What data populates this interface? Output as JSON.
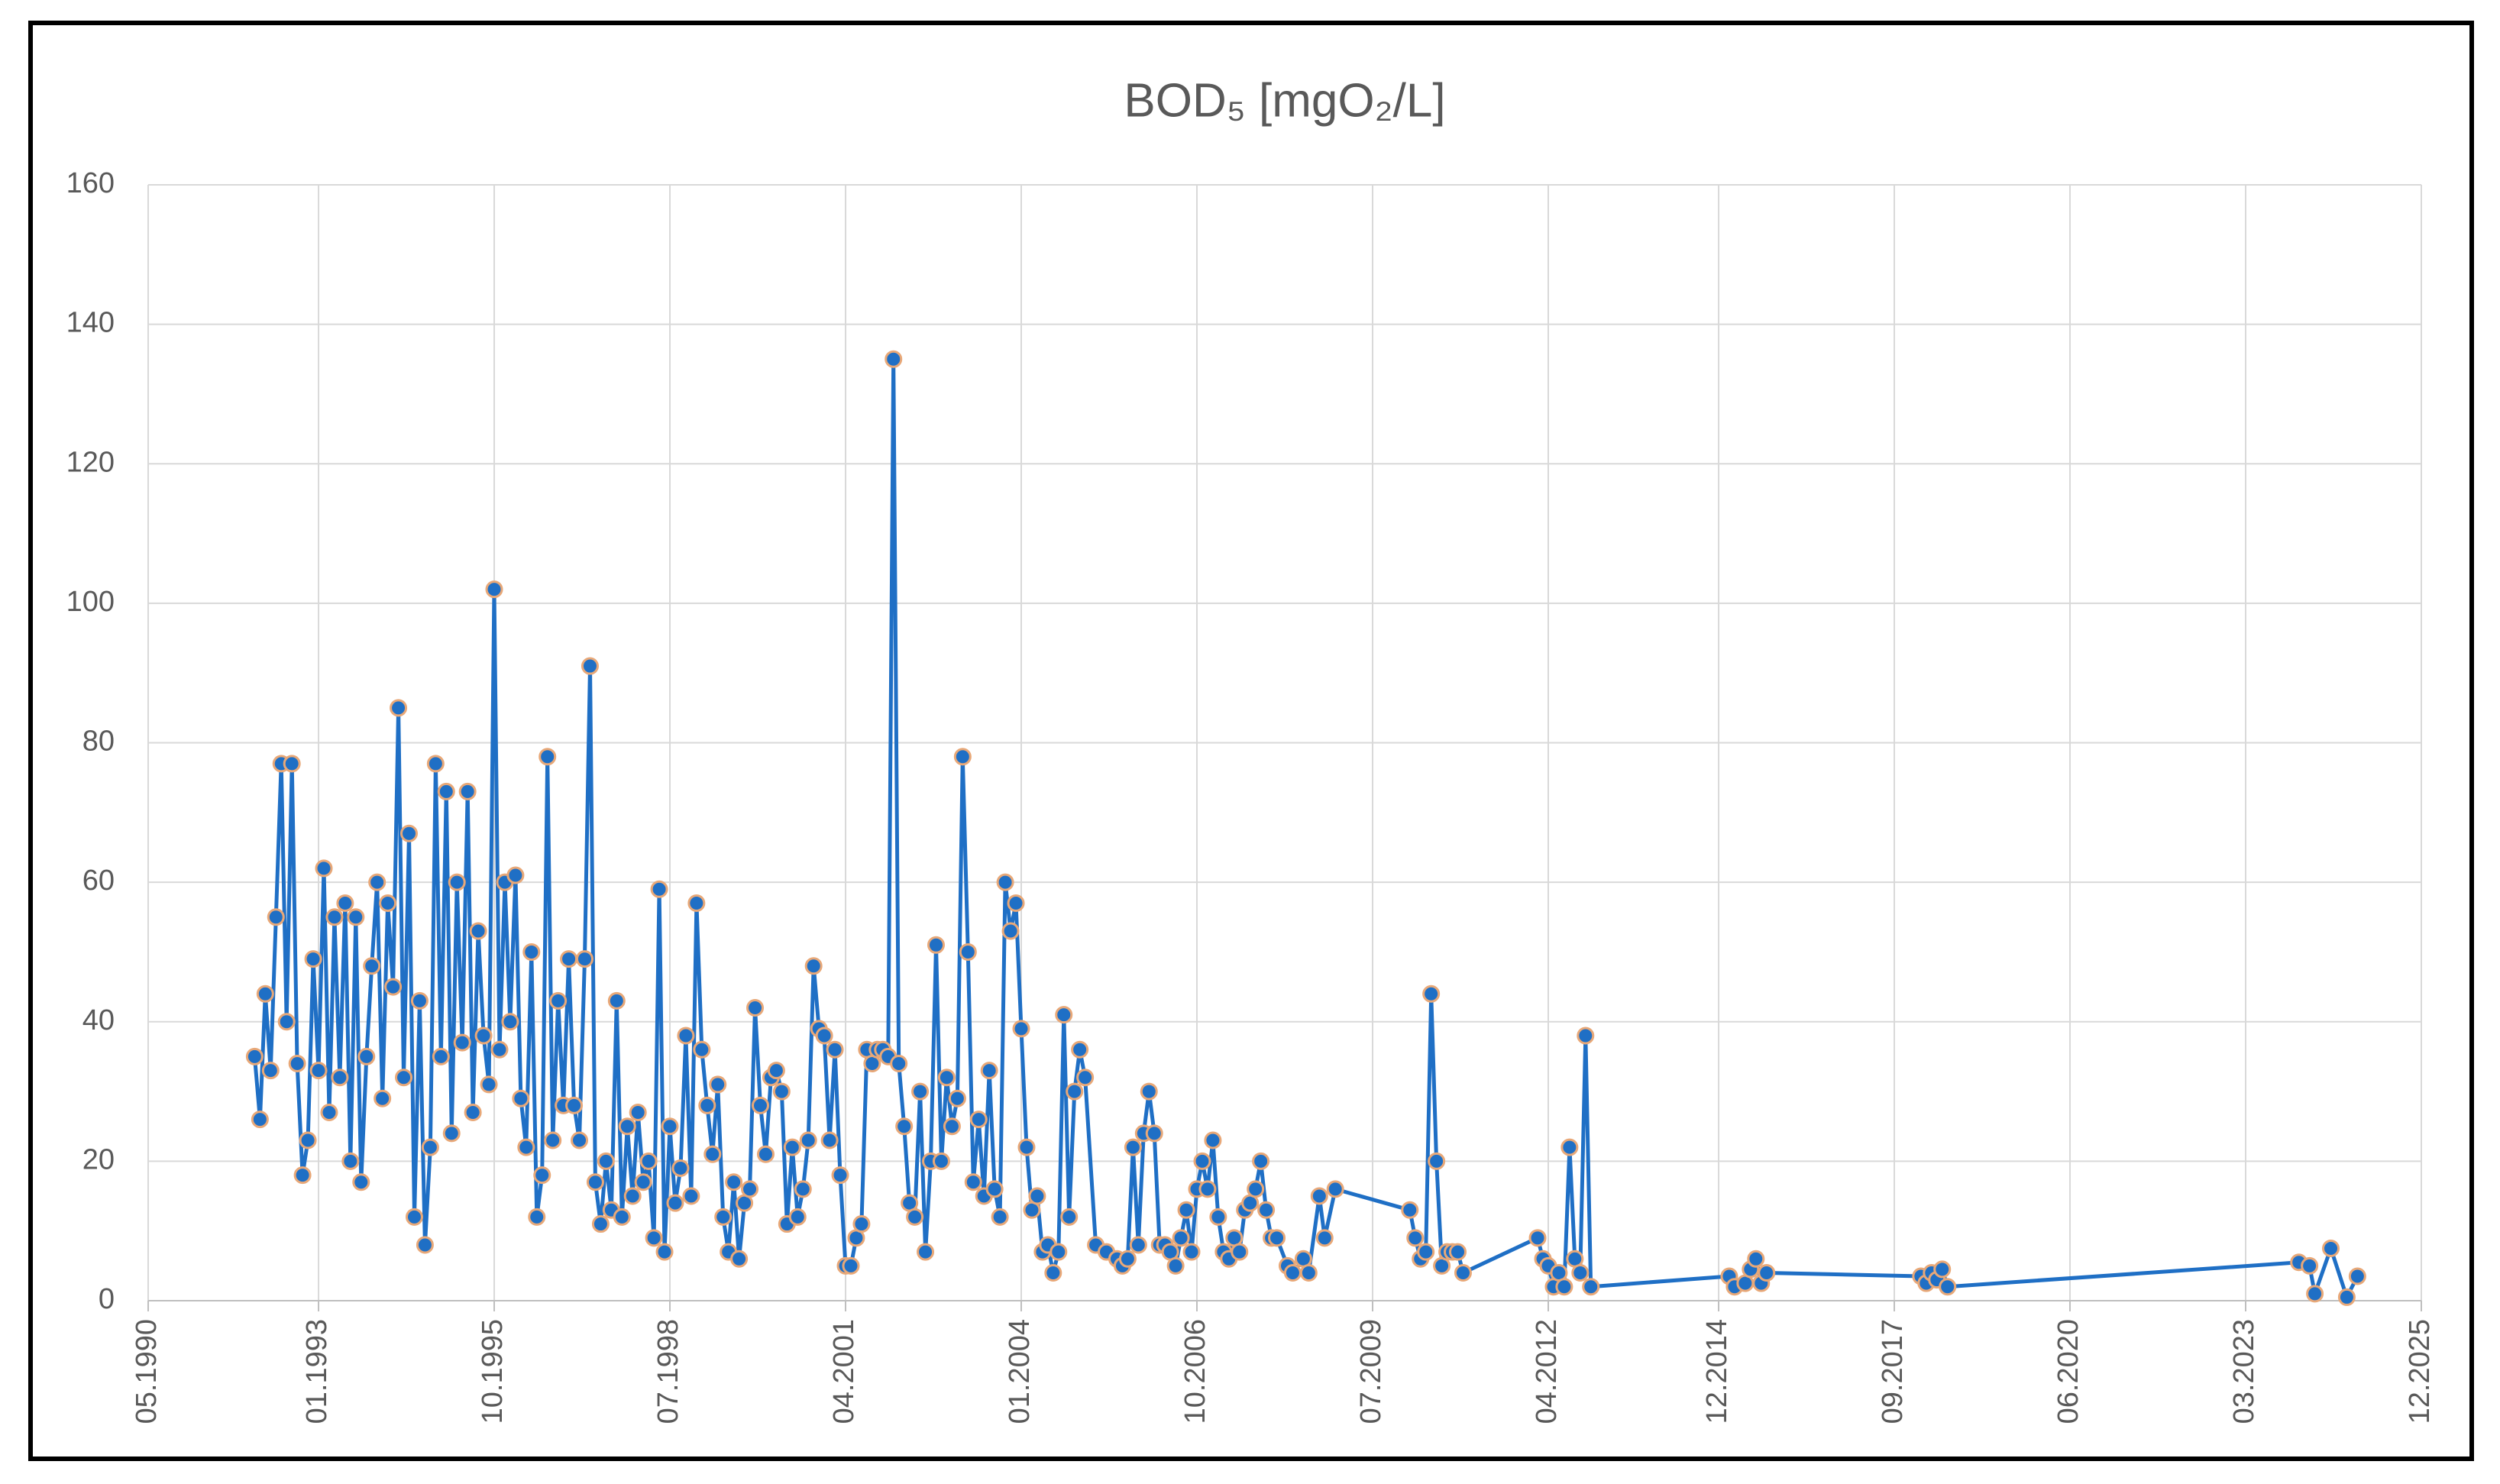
{
  "chart_data": {
    "type": "line",
    "title": "BOD₅ [mgO₂/L]",
    "color": "#1f6fc5",
    "marker_edge": "#e8a878",
    "grid": true,
    "ylim": [
      0,
      160
    ],
    "yticks": [
      0,
      20,
      40,
      60,
      80,
      100,
      120,
      140,
      160
    ],
    "xlim": [
      "1990-05",
      "2025-12"
    ],
    "xticks": [
      {
        "value": "1990-05",
        "label": "05.1990"
      },
      {
        "value": "1993-01",
        "label": "01.1993"
      },
      {
        "value": "1995-10",
        "label": "10.1995"
      },
      {
        "value": "1998-07",
        "label": "07.1998"
      },
      {
        "value": "2001-04",
        "label": "04.2001"
      },
      {
        "value": "2004-01",
        "label": "01.2004"
      },
      {
        "value": "2006-10",
        "label": "10.2006"
      },
      {
        "value": "2009-07",
        "label": "07.2009"
      },
      {
        "value": "2012-04",
        "label": "04.2012"
      },
      {
        "value": "2014-12",
        "label": "12.2014"
      },
      {
        "value": "2017-09",
        "label": "09.2017"
      },
      {
        "value": "2020-06",
        "label": "06.2020"
      },
      {
        "value": "2023-03",
        "label": "03.2023"
      },
      {
        "value": "2025-12",
        "label": "12.2025"
      }
    ],
    "x": [
      "1992-01",
      "1992-02",
      "1992-03",
      "1992-04",
      "1992-05",
      "1992-06",
      "1992-07",
      "1992-08",
      "1992-09",
      "1992-10",
      "1992-11",
      "1992-12",
      "1993-01",
      "1993-02",
      "1993-03",
      "1993-04",
      "1993-05",
      "1993-06",
      "1993-07",
      "1993-08",
      "1993-09",
      "1993-10",
      "1993-11",
      "1993-12",
      "1994-01",
      "1994-02",
      "1994-03",
      "1994-04",
      "1994-05",
      "1994-06",
      "1994-07",
      "1994-08",
      "1994-09",
      "1994-10",
      "1994-11",
      "1994-12",
      "1995-01",
      "1995-02",
      "1995-03",
      "1995-04",
      "1995-05",
      "1995-06",
      "1995-07",
      "1995-08",
      "1995-09",
      "1995-10",
      "1995-11",
      "1995-12",
      "1996-01",
      "1996-02",
      "1996-03",
      "1996-04",
      "1996-05",
      "1996-06",
      "1996-07",
      "1996-08",
      "1996-09",
      "1996-10",
      "1996-11",
      "1996-12",
      "1997-01",
      "1997-02",
      "1997-03",
      "1997-04",
      "1997-05",
      "1997-06",
      "1997-07",
      "1997-08",
      "1997-09",
      "1997-10",
      "1997-11",
      "1997-12",
      "1998-01",
      "1998-02",
      "1998-03",
      "1998-04",
      "1998-05",
      "1998-06",
      "1998-07",
      "1998-08",
      "1998-09",
      "1998-10",
      "1998-11",
      "1998-12",
      "1999-01",
      "1999-02",
      "1999-03",
      "1999-04",
      "1999-05",
      "1999-06",
      "1999-07",
      "1999-08",
      "1999-09",
      "1999-10",
      "1999-11",
      "1999-12",
      "2000-01",
      "2000-02",
      "2000-03",
      "2000-04",
      "2000-05",
      "2000-06",
      "2000-07",
      "2000-08",
      "2000-09",
      "2000-10",
      "2000-11",
      "2000-12",
      "2001-01",
      "2001-02",
      "2001-03",
      "2001-04",
      "2001-05",
      "2001-06",
      "2001-07",
      "2001-08",
      "2001-09",
      "2001-10",
      "2001-11",
      "2001-12",
      "2002-01",
      "2002-02",
      "2002-03",
      "2002-04",
      "2002-05",
      "2002-06",
      "2002-07",
      "2002-08",
      "2002-09",
      "2002-10",
      "2002-11",
      "2002-12",
      "2003-01",
      "2003-02",
      "2003-03",
      "2003-04",
      "2003-05",
      "2003-06",
      "2003-07",
      "2003-08",
      "2003-09",
      "2003-10",
      "2003-11",
      "2003-12",
      "2004-01",
      "2004-02",
      "2004-03",
      "2004-04",
      "2004-05",
      "2004-06",
      "2004-07",
      "2004-08",
      "2004-09",
      "2004-10",
      "2004-11",
      "2004-12",
      "2005-01",
      "2005-03",
      "2005-05",
      "2005-07",
      "2005-08",
      "2005-09",
      "2005-10",
      "2005-11",
      "2005-12",
      "2006-01",
      "2006-02",
      "2006-03",
      "2006-04",
      "2006-05",
      "2006-06",
      "2006-07",
      "2006-08",
      "2006-09",
      "2006-10",
      "2006-11",
      "2006-12",
      "2007-01",
      "2007-02",
      "2007-03",
      "2007-04",
      "2007-05",
      "2007-06",
      "2007-07",
      "2007-08",
      "2007-09",
      "2007-10",
      "2007-11",
      "2007-12",
      "2008-01",
      "2008-03",
      "2008-04",
      "2008-06",
      "2008-07",
      "2008-09",
      "2008-10",
      "2008-12",
      "2010-02",
      "2010-03",
      "2010-04",
      "2010-05",
      "2010-06",
      "2010-07",
      "2010-08",
      "2010-09",
      "2010-10",
      "2010-11",
      "2010-12",
      "2012-02",
      "2012-03",
      "2012-04",
      "2012-05",
      "2012-06",
      "2012-07",
      "2012-08",
      "2012-09",
      "2012-10",
      "2012-11",
      "2012-12",
      "2015-02",
      "2015-03",
      "2015-05",
      "2015-06",
      "2015-07",
      "2015-08",
      "2015-09",
      "2018-02",
      "2018-03",
      "2018-04",
      "2018-05",
      "2018-06",
      "2018-07",
      "2024-01",
      "2024-03",
      "2024-04",
      "2024-07",
      "2024-10",
      "2024-12"
    ],
    "values": [
      35,
      26,
      44,
      33,
      55,
      77,
      40,
      77,
      34,
      18,
      23,
      49,
      33,
      62,
      27,
      55,
      32,
      57,
      20,
      55,
      17,
      35,
      48,
      60,
      29,
      57,
      45,
      85,
      32,
      67,
      12,
      43,
      8,
      22,
      77,
      35,
      73,
      24,
      60,
      37,
      73,
      27,
      53,
      38,
      31,
      102,
      36,
      60,
      40,
      61,
      29,
      22,
      50,
      12,
      18,
      78,
      23,
      43,
      28,
      49,
      28,
      23,
      49,
      91,
      17,
      11,
      20,
      13,
      43,
      12,
      25,
      15,
      27,
      17,
      20,
      9,
      59,
      7,
      25,
      14,
      19,
      38,
      15,
      57,
      36,
      28,
      21,
      31,
      12,
      7,
      17,
      6,
      14,
      16,
      42,
      28,
      21,
      32,
      33,
      30,
      11,
      22,
      12,
      16,
      23,
      48,
      39,
      38,
      23,
      36,
      18,
      5,
      5,
      9,
      11,
      36,
      34,
      36,
      36,
      35,
      135,
      34,
      25,
      14,
      12,
      30,
      7,
      20,
      51,
      20,
      32,
      25,
      29,
      78,
      50,
      17,
      26,
      15,
      33,
      16,
      12,
      60,
      53,
      57,
      39,
      22,
      13,
      15,
      7,
      8,
      4,
      7,
      41,
      12,
      30,
      36,
      32,
      8,
      7,
      6,
      5,
      6,
      22,
      8,
      24,
      30,
      24,
      8,
      8,
      7,
      5,
      9,
      13,
      7,
      16,
      20,
      16,
      23,
      12,
      7,
      6,
      9,
      7,
      13,
      14,
      16,
      20,
      13,
      9,
      9,
      5,
      4,
      6,
      4,
      15,
      9,
      16,
      13,
      9,
      6,
      7,
      44,
      20,
      5,
      7,
      7,
      7,
      4,
      9,
      6,
      5,
      2,
      4,
      2,
      22,
      6,
      4,
      38,
      2,
      3.5,
      2,
      2.5,
      4.5,
      6,
      2.5,
      4,
      3.5,
      2.5,
      4,
      3,
      4.5,
      2,
      5.5,
      5,
      1,
      7.5,
      0.5,
      3.5
    ]
  }
}
